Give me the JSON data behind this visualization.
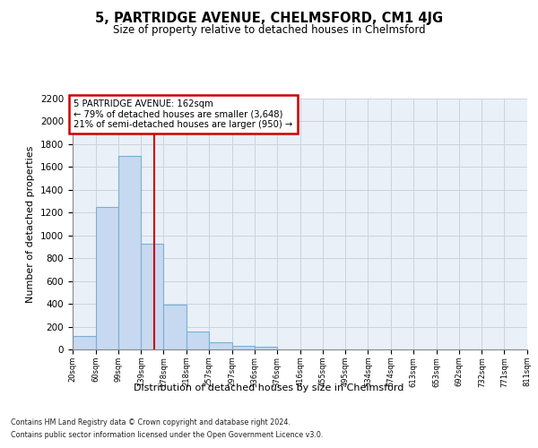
{
  "title": "5, PARTRIDGE AVENUE, CHELMSFORD, CM1 4JG",
  "subtitle": "Size of property relative to detached houses in Chelmsford",
  "xlabel": "Distribution of detached houses by size in Chelmsford",
  "ylabel": "Number of detached properties",
  "footer_line1": "Contains HM Land Registry data © Crown copyright and database right 2024.",
  "footer_line2": "Contains public sector information licensed under the Open Government Licence v3.0.",
  "bins": [
    20,
    60,
    99,
    139,
    178,
    218,
    257,
    297,
    336,
    376,
    416,
    455,
    495,
    534,
    574,
    613,
    653,
    692,
    732,
    771,
    811
  ],
  "bar_heights": [
    120,
    1250,
    1700,
    930,
    390,
    155,
    65,
    30,
    25,
    0,
    0,
    0,
    0,
    0,
    0,
    0,
    0,
    0,
    0,
    0
  ],
  "bar_color": "#c6d9f0",
  "bar_edge_color": "#7aafd4",
  "property_size": 162,
  "vline_color": "#cc0000",
  "annotation_text": "5 PARTRIDGE AVENUE: 162sqm\n← 79% of detached houses are smaller (3,648)\n21% of semi-detached houses are larger (950) →",
  "annotation_box_color": "#cc0000",
  "ylim": [
    0,
    2200
  ],
  "yticks": [
    0,
    200,
    400,
    600,
    800,
    1000,
    1200,
    1400,
    1600,
    1800,
    2000,
    2200
  ],
  "bg_color": "#ffffff",
  "grid_color": "#c8d4e0",
  "ax_bg_color": "#eaf0f8"
}
